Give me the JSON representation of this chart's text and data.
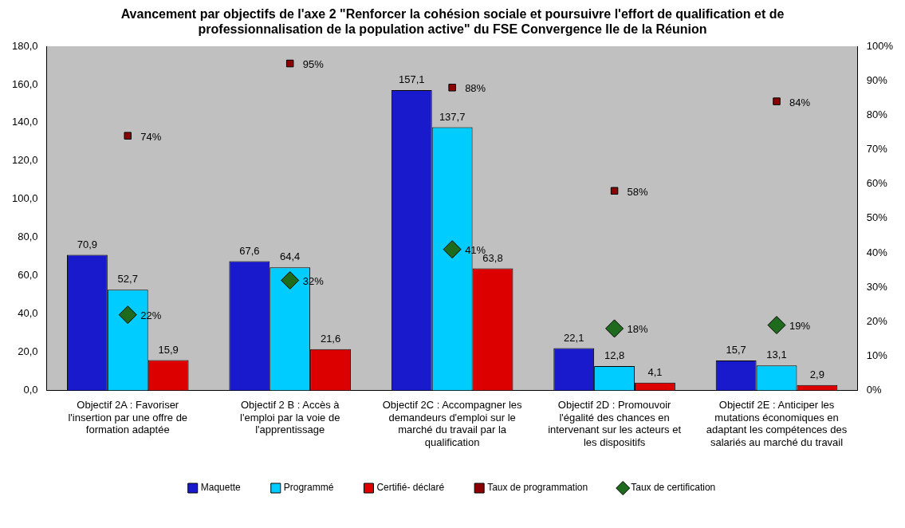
{
  "chart_data": {
    "type": "bar",
    "title": "Avancement par objectifs de l'axe 2 \"Renforcer la cohésion sociale et poursuivre l'effort de qualification et de professionnalisation de la population active\" du FSE Convergence Ile de la Réunion",
    "categories": [
      "Objectif 2A : Favoriser l'insertion par une offre de formation adaptée",
      "Objectif 2 B : Accès à l'emploi par la voie de l'apprentissage",
      "Objectif 2C : Accompagner les demandeurs d'emploi sur le marché du travail par la qualification",
      "Objectif 2D : Promouvoir l'égalité des chances en intervenant sur les acteurs et les dispositifs",
      "Objectif 2E : Anticiper les mutations économiques en adaptant les compétences des salariés au marché du travail"
    ],
    "series": [
      {
        "name": "Maquette",
        "color": "#1a1acd",
        "values": [
          70.9,
          67.6,
          157.1,
          22.1,
          15.7
        ],
        "value_labels": [
          "70,9",
          "67,6",
          "157,1",
          "22,1",
          "15,7"
        ]
      },
      {
        "name": "Programmé",
        "color": "#00ccff",
        "values": [
          52.7,
          64.4,
          137.7,
          12.8,
          13.1
        ],
        "value_labels": [
          "52,7",
          "64,4",
          "137,7",
          "12,8",
          "13,1"
        ]
      },
      {
        "name": "Certifié- déclaré",
        "color": "#dd0000",
        "values": [
          15.9,
          21.6,
          63.8,
          4.1,
          2.9
        ],
        "value_labels": [
          "15,9",
          "21,6",
          "63,8",
          "4,1",
          "2,9"
        ]
      },
      {
        "name": "Taux de programmation",
        "type": "scatter",
        "axis": "y2",
        "marker": "square",
        "color": "#8b0000",
        "x": [
          "Objectif 2A : Favoriser l'insertion par une offre de formation adaptée",
          "Objectif 2 B : Accès à l'emploi par la voie de l'apprentissage",
          "Objectif 2C : Accompagner les demandeurs d'emploi sur le marché du travail par la qualification",
          "Objectif 2D : Promouvoir l'égalité des chances en intervenant sur les acteurs et les dispositifs",
          "Objectif 2E : Anticiper les mutations économiques en adaptant les compétences des salariés au marché du travail"
        ],
        "values": [
          74,
          95,
          88,
          58,
          84
        ],
        "value_labels": [
          "74%",
          "95%",
          "88%",
          "58%",
          "84%"
        ]
      },
      {
        "name": "Taux de certification",
        "type": "scatter",
        "axis": "y2",
        "marker": "diamond",
        "color": "#1e6b1e",
        "x": [
          "Objectif 2A : Favoriser l'insertion par une offre de formation adaptée",
          "Objectif 2 B : Accès à l'emploi par la voie de l'apprentissage",
          "Objectif 2C : Accompagner les demandeurs d'emploi sur le marché du travail par la qualification",
          "Objectif 2D : Promouvoir l'égalité des chances en intervenant sur les acteurs et les dispositifs",
          "Objectif 2E : Anticiper les mutations économiques en adaptant les compétences des salariés au marché du travail"
        ],
        "values": [
          22,
          32,
          41,
          18,
          19
        ],
        "value_labels": [
          "22%",
          "32%",
          "41%",
          "18%",
          "19%"
        ]
      }
    ],
    "ylim": [
      0,
      180
    ],
    "yticks": [
      {
        "value": 0,
        "label": "0,0"
      },
      {
        "value": 20,
        "label": "20,0"
      },
      {
        "value": 40,
        "label": "40,0"
      },
      {
        "value": 60,
        "label": "60,0"
      },
      {
        "value": 80,
        "label": "80,0"
      },
      {
        "value": 100,
        "label": "100,0"
      },
      {
        "value": 120,
        "label": "120,0"
      },
      {
        "value": 140,
        "label": "140,0"
      },
      {
        "value": 160,
        "label": "160,0"
      },
      {
        "value": 180,
        "label": "180,0"
      }
    ],
    "y2lim": [
      0,
      100
    ],
    "y2ticks": [
      {
        "value": 0,
        "label": "0%"
      },
      {
        "value": 10,
        "label": "10%"
      },
      {
        "value": 20,
        "label": "20%"
      },
      {
        "value": 30,
        "label": "30%"
      },
      {
        "value": 40,
        "label": "40%"
      },
      {
        "value": 50,
        "label": "50%"
      },
      {
        "value": 60,
        "label": "60%"
      },
      {
        "value": 70,
        "label": "70%"
      },
      {
        "value": 80,
        "label": "80%"
      },
      {
        "value": 90,
        "label": "90%"
      },
      {
        "value": 100,
        "label": "100%"
      }
    ],
    "grid": false,
    "legend": "bottom"
  }
}
